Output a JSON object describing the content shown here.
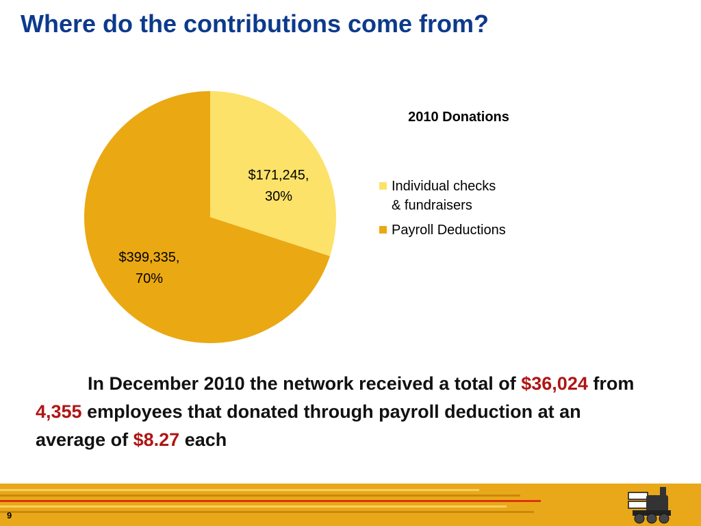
{
  "slide": {
    "title": "Where do the contributions come from?",
    "page_number": "9"
  },
  "chart_data": {
    "type": "pie",
    "title": "2010 Donations",
    "slices": [
      {
        "label": "Individual checks & fundraisers",
        "value": 171245,
        "value_label": "$171,245,",
        "percent_label": "30%",
        "color": "#fde26a"
      },
      {
        "label": "Payroll Deductions",
        "value": 399335,
        "value_label": "$399,335,",
        "percent_label": "70%",
        "color": "#eaa813"
      }
    ],
    "legend": {
      "position": "right",
      "items": [
        {
          "line1": "Individual checks",
          "line2": "& fundraisers",
          "color": "#fde26a"
        },
        {
          "line1": "Payroll Deductions",
          "line2": "",
          "color": "#eaa813"
        }
      ]
    }
  },
  "summary": {
    "part1": "In December 2010 the network received a total of",
    "amount": "$36,024",
    "part2": "from",
    "employees": "4,355",
    "part3": "employees that donated through payroll deduction at an average of",
    "average": "$8.27",
    "part4": "each"
  },
  "colors": {
    "title": "#0c3a8c",
    "highlight": "#b01515",
    "footer": "#e9a819"
  }
}
